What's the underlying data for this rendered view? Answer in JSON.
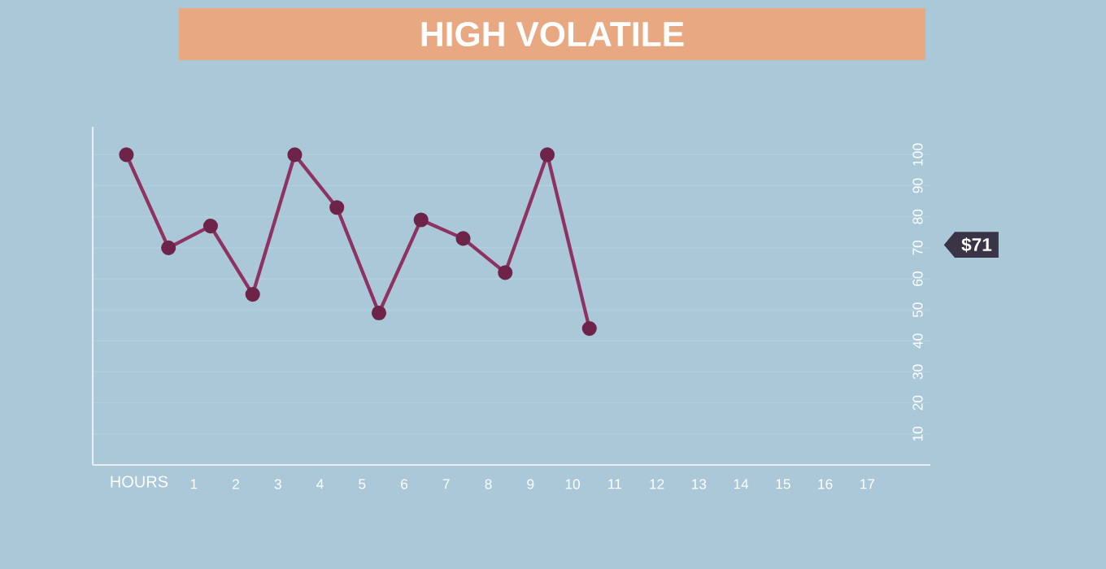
{
  "chart_data": {
    "type": "line",
    "title": "HIGH VOLATILE",
    "xlabel": "HOURS",
    "x": [
      -0.6,
      0.4,
      1.4,
      2.4,
      3.4,
      4.4,
      5.4,
      6.4,
      7.4,
      8.4,
      9.4,
      10.4
    ],
    "series": [
      {
        "color": "#8e3262",
        "values": [
          100,
          70,
          77,
          55,
          100,
          83,
          49,
          79,
          73,
          62,
          100,
          44
        ]
      }
    ],
    "xlim": [
      -1.4,
      18.5
    ],
    "ylim": [
      0,
      109
    ],
    "xticks": [
      1,
      2,
      3,
      4,
      5,
      6,
      7,
      8,
      9,
      10,
      11,
      12,
      13,
      14,
      15,
      16,
      17
    ],
    "yticks": [
      10,
      20,
      30,
      40,
      50,
      60,
      70,
      80,
      90,
      100
    ],
    "annotations": [
      "$71"
    ],
    "grid": "y",
    "marker": "circle",
    "line_style": "solid"
  }
}
